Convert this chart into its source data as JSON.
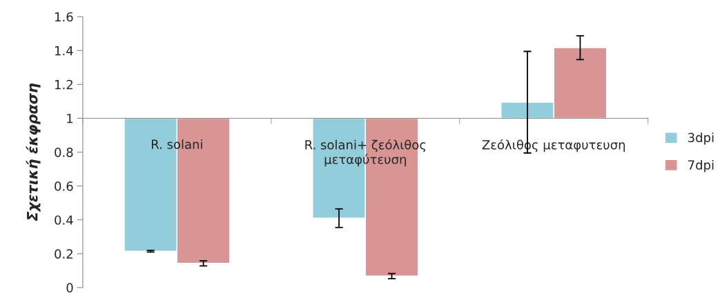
{
  "chart_data": {
    "type": "bar",
    "ylabel": "Σχετική έκφραση",
    "categories": [
      "R. solani",
      "R. solani+ ζεόλιθος\nμεταφύτευση",
      "Ζεόλιθος μεταφυτευση"
    ],
    "series": [
      {
        "name": "3dpi",
        "color": "#92cddc",
        "base": [
          1,
          1,
          1
        ],
        "values": [
          -0.785,
          -0.59,
          0.095
        ],
        "errors": [
          0.005,
          0.055,
          0.3
        ]
      },
      {
        "name": "7dpi",
        "color": "#d99594",
        "base": [
          1,
          1,
          1
        ],
        "values": [
          -0.857,
          -0.932,
          0.417
        ],
        "errors": [
          0.015,
          0.015,
          0.07
        ]
      }
    ],
    "ylim": [
      0,
      1.6
    ],
    "yticks": [
      0,
      0.2,
      0.4,
      0.6,
      0.8,
      1,
      1.2,
      1.4,
      1.6
    ],
    "grid": false,
    "legend": "right"
  }
}
